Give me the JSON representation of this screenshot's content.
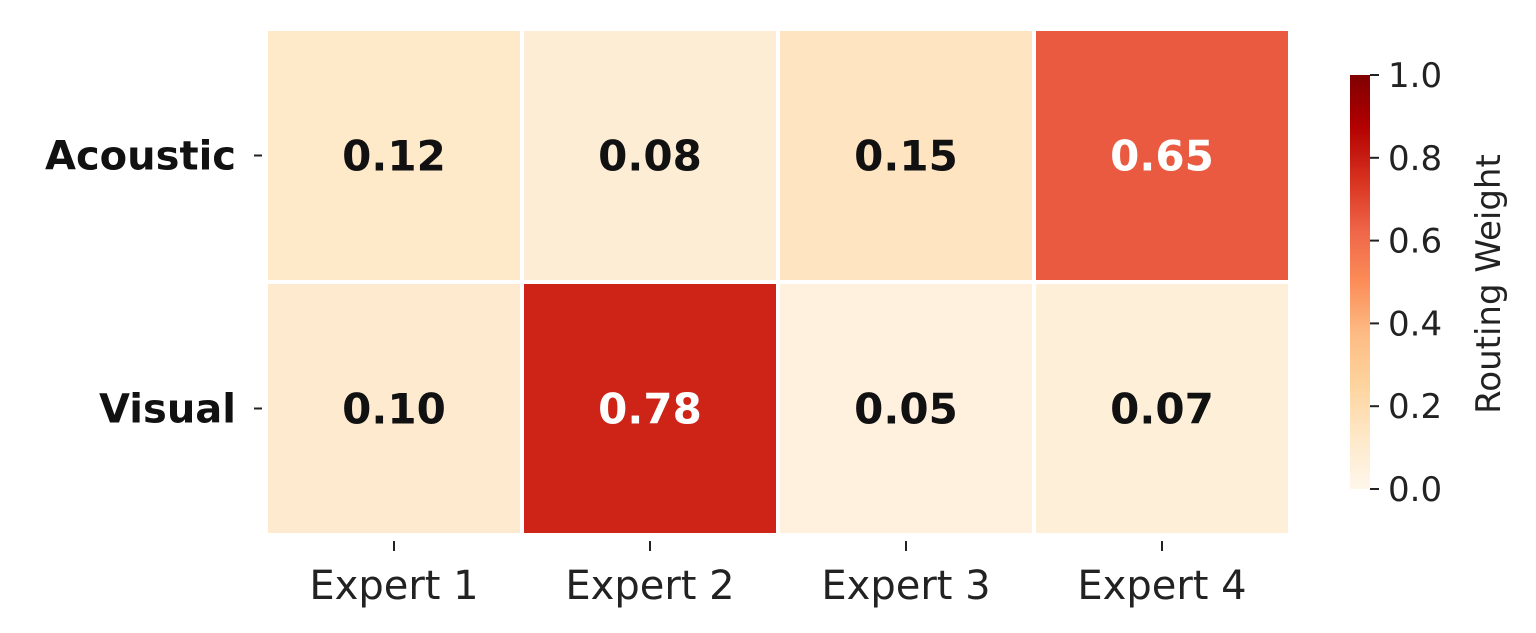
{
  "chart_data": {
    "type": "heatmap",
    "title": "",
    "xlabel": "",
    "ylabel": "",
    "rows": [
      "Acoustic",
      "Visual"
    ],
    "columns": [
      "Expert 1",
      "Expert 2",
      "Expert 3",
      "Expert 4"
    ],
    "values": [
      [
        0.12,
        0.08,
        0.15,
        0.65
      ],
      [
        0.1,
        0.78,
        0.05,
        0.07
      ]
    ],
    "value_format": "0.00",
    "colorbar": {
      "label": "Routing Weight",
      "min": 0.0,
      "max": 1.0,
      "ticks": [
        0.0,
        0.2,
        0.4,
        0.6,
        0.8,
        1.0
      ],
      "tick_labels": [
        "0.0",
        "0.2",
        "0.4",
        "0.6",
        "0.8",
        "1.0"
      ],
      "colormap": "OrRd",
      "stops": [
        "#fff7ec",
        "#fee8c8",
        "#fdd49e",
        "#fdbb84",
        "#fc8d59",
        "#ef6548",
        "#d7301f",
        "#b30000",
        "#7f0000"
      ]
    },
    "cell_border_color": "#ffffff",
    "label_color_dark": "#111111",
    "label_color_light": "#ffffff"
  }
}
